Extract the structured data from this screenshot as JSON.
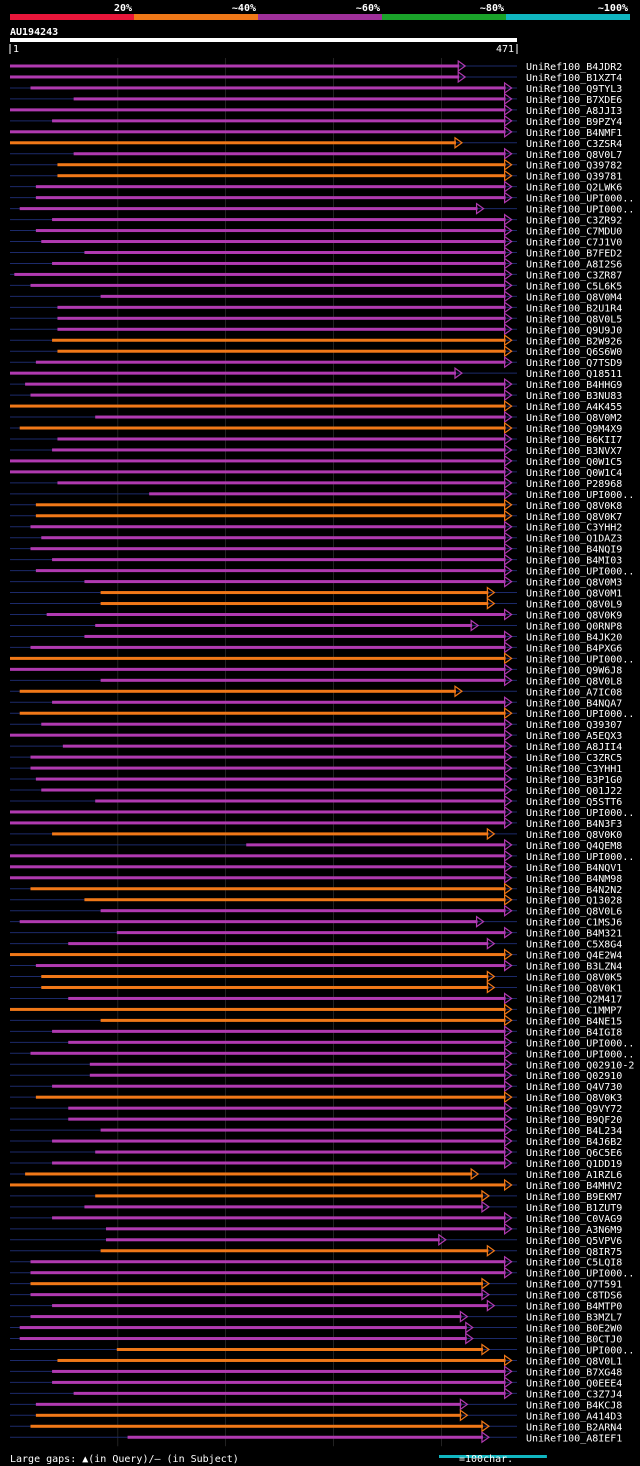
{
  "query": {
    "name": "AU194243",
    "start": "1",
    "end": "471",
    "length": 471
  },
  "legend_scale": [
    {
      "label": "20%",
      "color": "#e8163a"
    },
    {
      "label": "~40%",
      "color": "#f07818"
    },
    {
      "label": "~60%",
      "color": "#a0309a"
    },
    {
      "label": "~80%",
      "color": "#1aa32a"
    },
    {
      "label": "~100%",
      "color": "#10b6c0"
    }
  ],
  "footer": {
    "gap_text": "Large gaps: ▲(in Query)/– (in Subject)",
    "scale_text": "=100char.",
    "scale_color": "#10b6c0"
  },
  "colors": {
    "purple": "#b03ab0",
    "orange": "#f07818",
    "gap": "#ffd27a"
  },
  "chart_data": {
    "type": "alignment",
    "x_range": [
      1,
      471
    ],
    "hits": [
      {
        "name": "UniRef100_B4JDR2",
        "start": 1,
        "end": 423,
        "color": "purple",
        "end_arrow": true
      },
      {
        "name": "UniRef100_B1XZT4",
        "start": 1,
        "end": 423,
        "color": "purple"
      },
      {
        "name": "UniRef100_Q9TYL3",
        "start": 20,
        "end": 466,
        "color": "purple"
      },
      {
        "name": "UniRef100_B7XDE6",
        "start": 60,
        "end": 466,
        "color": "purple"
      },
      {
        "name": "UniRef100_A8JJI3",
        "start": 1,
        "end": 466,
        "color": "purple"
      },
      {
        "name": "UniRef100_B9PZY4",
        "start": 40,
        "end": 466,
        "color": "purple"
      },
      {
        "name": "UniRef100_B4NMF1",
        "start": 1,
        "end": 466,
        "color": "purple"
      },
      {
        "name": "UniRef100_C3ZSR4",
        "start": 1,
        "end": 420,
        "color": "orange"
      },
      {
        "name": "UniRef100_Q8V0L7",
        "start": 60,
        "end": 466,
        "color": "purple"
      },
      {
        "name": "UniRef100_Q39782",
        "start": 45,
        "end": 466,
        "color": "orange"
      },
      {
        "name": "UniRef100_Q39781",
        "start": 45,
        "end": 466,
        "color": "orange"
      },
      {
        "name": "UniRef100_Q2LWK6",
        "start": 25,
        "end": 466,
        "color": "purple"
      },
      {
        "name": "UniRef100_UPI000..",
        "start": 25,
        "end": 466,
        "color": "purple"
      },
      {
        "name": "UniRef100_UPI000..",
        "start": 10,
        "end": 440,
        "color": "purple"
      },
      {
        "name": "UniRef100_C3ZR92",
        "start": 40,
        "end": 466,
        "color": "purple"
      },
      {
        "name": "UniRef100_C7MDU0",
        "start": 25,
        "end": 466,
        "color": "purple"
      },
      {
        "name": "UniRef100_C7J1V0",
        "start": 30,
        "end": 466,
        "color": "purple"
      },
      {
        "name": "UniRef100_B7FED2",
        "start": 70,
        "end": 466,
        "color": "purple"
      },
      {
        "name": "UniRef100_A8I2S6",
        "start": 40,
        "end": 466,
        "color": "purple"
      },
      {
        "name": "UniRef100_C3ZR87",
        "start": 5,
        "end": 466,
        "color": "purple"
      },
      {
        "name": "UniRef100_C5L6K5",
        "start": 20,
        "end": 466,
        "color": "purple"
      },
      {
        "name": "UniRef100_Q8V0M4",
        "start": 85,
        "end": 466,
        "color": "purple"
      },
      {
        "name": "UniRef100_B2U1R4",
        "start": 45,
        "end": 466,
        "color": "purple"
      },
      {
        "name": "UniRef100_Q8V0L5",
        "start": 45,
        "end": 466,
        "color": "purple"
      },
      {
        "name": "UniRef100_Q9U9J0",
        "start": 45,
        "end": 466,
        "color": "purple"
      },
      {
        "name": "UniRef100_B2W926",
        "start": 40,
        "end": 466,
        "color": "orange"
      },
      {
        "name": "UniRef100_Q6S6W0",
        "start": 45,
        "end": 466,
        "color": "orange"
      },
      {
        "name": "UniRef100_Q7TSD9",
        "start": 25,
        "end": 466,
        "color": "purple"
      },
      {
        "name": "UniRef100_Q18511",
        "start": 1,
        "end": 420,
        "color": "purple"
      },
      {
        "name": "UniRef100_B4HHG9",
        "start": 15,
        "end": 466,
        "color": "purple"
      },
      {
        "name": "UniRef100_B3NU83",
        "start": 20,
        "end": 466,
        "color": "purple"
      },
      {
        "name": "UniRef100_A4K455",
        "start": 1,
        "end": 466,
        "color": "orange"
      },
      {
        "name": "UniRef100_Q8V0M2",
        "start": 80,
        "end": 466,
        "color": "purple"
      },
      {
        "name": "UniRef100_Q9M4X9",
        "start": 10,
        "end": 466,
        "color": "orange"
      },
      {
        "name": "UniRef100_B6KII7",
        "start": 45,
        "end": 466,
        "color": "purple"
      },
      {
        "name": "UniRef100_B3NVX7",
        "start": 40,
        "end": 466,
        "color": "purple"
      },
      {
        "name": "UniRef100_Q0W1C5",
        "start": 1,
        "end": 466,
        "color": "purple"
      },
      {
        "name": "UniRef100_Q0W1C4",
        "start": 1,
        "end": 466,
        "color": "purple"
      },
      {
        "name": "UniRef100_P28968",
        "start": 45,
        "end": 466,
        "color": "purple"
      },
      {
        "name": "UniRef100_UPI000..",
        "start": 130,
        "end": 466,
        "color": "purple"
      },
      {
        "name": "UniRef100_Q8V0K8",
        "start": 25,
        "end": 466,
        "color": "orange"
      },
      {
        "name": "UniRef100_Q8V0K7",
        "start": 25,
        "end": 466,
        "color": "orange"
      },
      {
        "name": "UniRef100_C3YHH2",
        "start": 20,
        "end": 466,
        "color": "purple"
      },
      {
        "name": "UniRef100_Q1DAZ3",
        "start": 30,
        "end": 466,
        "color": "purple"
      },
      {
        "name": "UniRef100_B4NQI9",
        "start": 20,
        "end": 466,
        "color": "purple"
      },
      {
        "name": "UniRef100_B4MI03",
        "start": 40,
        "end": 466,
        "color": "purple"
      },
      {
        "name": "UniRef100_UPI000..",
        "start": 25,
        "end": 466,
        "color": "purple"
      },
      {
        "name": "UniRef100_Q8V0M3",
        "start": 70,
        "end": 466,
        "color": "purple"
      },
      {
        "name": "UniRef100_Q8V0M1",
        "start": 85,
        "end": 450,
        "color": "orange"
      },
      {
        "name": "UniRef100_Q8V0L9",
        "start": 85,
        "end": 450,
        "color": "orange"
      },
      {
        "name": "UniRef100_Q8V0K9",
        "start": 35,
        "end": 466,
        "color": "purple"
      },
      {
        "name": "UniRef100_Q0RNP8",
        "start": 80,
        "end": 435,
        "color": "purple"
      },
      {
        "name": "UniRef100_B4JK20",
        "start": 70,
        "end": 466,
        "color": "purple"
      },
      {
        "name": "UniRef100_B4PXG6",
        "start": 20,
        "end": 466,
        "color": "purple"
      },
      {
        "name": "UniRef100_UPI000..",
        "start": 1,
        "end": 466,
        "color": "orange"
      },
      {
        "name": "UniRef100_Q9W6J8",
        "start": 1,
        "end": 466,
        "color": "purple"
      },
      {
        "name": "UniRef100_Q8V0L8",
        "start": 85,
        "end": 466,
        "color": "purple"
      },
      {
        "name": "UniRef100_A7IC08",
        "start": 10,
        "end": 420,
        "color": "orange"
      },
      {
        "name": "UniRef100_B4NQA7",
        "start": 40,
        "end": 466,
        "color": "purple"
      },
      {
        "name": "UniRef100_UPI000..",
        "start": 10,
        "end": 466,
        "color": "orange"
      },
      {
        "name": "UniRef100_Q39307",
        "start": 30,
        "end": 466,
        "color": "purple"
      },
      {
        "name": "UniRef100_A5EQX3",
        "start": 1,
        "end": 466,
        "color": "purple"
      },
      {
        "name": "UniRef100_A8JII4",
        "start": 50,
        "end": 466,
        "color": "purple"
      },
      {
        "name": "UniRef100_C3ZRC5",
        "start": 20,
        "end": 466,
        "color": "purple"
      },
      {
        "name": "UniRef100_C3YHH1",
        "start": 20,
        "end": 466,
        "color": "purple"
      },
      {
        "name": "UniRef100_B3P1G0",
        "start": 25,
        "end": 466,
        "color": "purple"
      },
      {
        "name": "UniRef100_Q01J22",
        "start": 30,
        "end": 466,
        "color": "purple"
      },
      {
        "name": "UniRef100_Q5STT6",
        "start": 80,
        "end": 466,
        "color": "purple"
      },
      {
        "name": "UniRef100_UPI000..",
        "start": 1,
        "end": 466,
        "color": "purple"
      },
      {
        "name": "UniRef100_B4N3F3",
        "start": 1,
        "end": 466,
        "color": "purple"
      },
      {
        "name": "UniRef100_Q8V0K0",
        "start": 40,
        "end": 450,
        "color": "orange"
      },
      {
        "name": "UniRef100_Q4QEM8",
        "start": 220,
        "end": 466,
        "color": "purple"
      },
      {
        "name": "UniRef100_UPI000..",
        "start": 1,
        "end": 466,
        "color": "purple"
      },
      {
        "name": "UniRef100_B4NQV1",
        "start": 1,
        "end": 466,
        "color": "purple"
      },
      {
        "name": "UniRef100_B4NM98",
        "start": 1,
        "end": 466,
        "color": "purple"
      },
      {
        "name": "UniRef100_B4N2N2",
        "start": 20,
        "end": 466,
        "color": "orange"
      },
      {
        "name": "UniRef100_Q13028",
        "start": 70,
        "end": 466,
        "color": "orange"
      },
      {
        "name": "UniRef100_Q8V0L6",
        "start": 85,
        "end": 466,
        "color": "purple"
      },
      {
        "name": "UniRef100_C1MSJ6",
        "start": 10,
        "end": 440,
        "color": "purple"
      },
      {
        "name": "UniRef100_B4M321",
        "start": 100,
        "end": 466,
        "color": "purple"
      },
      {
        "name": "UniRef100_C5X8G4",
        "start": 55,
        "end": 450,
        "color": "purple"
      },
      {
        "name": "UniRef100_Q4E2W4",
        "start": 1,
        "end": 466,
        "color": "orange"
      },
      {
        "name": "UniRef100_B3LZN4",
        "start": 25,
        "end": 466,
        "color": "purple"
      },
      {
        "name": "UniRef100_Q8V0K5",
        "start": 30,
        "end": 450,
        "color": "orange"
      },
      {
        "name": "UniRef100_Q8V0K1",
        "start": 30,
        "end": 450,
        "color": "orange"
      },
      {
        "name": "UniRef100_Q2M417",
        "start": 55,
        "end": 466,
        "color": "purple"
      },
      {
        "name": "UniRef100_C1MMP7",
        "start": 1,
        "end": 466,
        "color": "orange"
      },
      {
        "name": "UniRef100_B4NE15",
        "start": 85,
        "end": 466,
        "color": "orange"
      },
      {
        "name": "UniRef100_B4IGI8",
        "start": 40,
        "end": 466,
        "color": "purple"
      },
      {
        "name": "UniRef100_UPI000..",
        "start": 55,
        "end": 466,
        "color": "purple"
      },
      {
        "name": "UniRef100_UPI000..",
        "start": 20,
        "end": 466,
        "color": "purple"
      },
      {
        "name": "UniRef100_Q02910-2",
        "start": 75,
        "end": 466,
        "color": "purple"
      },
      {
        "name": "UniRef100_Q02910",
        "start": 75,
        "end": 466,
        "color": "purple"
      },
      {
        "name": "UniRef100_Q4V730",
        "start": 40,
        "end": 466,
        "color": "purple"
      },
      {
        "name": "UniRef100_Q8V0K3",
        "start": 25,
        "end": 466,
        "color": "orange"
      },
      {
        "name": "UniRef100_Q9VY72",
        "start": 55,
        "end": 466,
        "color": "purple"
      },
      {
        "name": "UniRef100_B9QF20",
        "start": 55,
        "end": 466,
        "color": "purple"
      },
      {
        "name": "UniRef100_B4L234",
        "start": 85,
        "end": 466,
        "color": "purple"
      },
      {
        "name": "UniRef100_B4J6B2",
        "start": 40,
        "end": 466,
        "color": "purple"
      },
      {
        "name": "UniRef100_Q6C5E6",
        "start": 80,
        "end": 466,
        "color": "purple"
      },
      {
        "name": "UniRef100_Q1DD19",
        "start": 40,
        "end": 466,
        "color": "purple"
      },
      {
        "name": "UniRef100_A1RZL6",
        "start": 15,
        "end": 435,
        "color": "orange"
      },
      {
        "name": "UniRef100_B4MHV2",
        "start": 1,
        "end": 466,
        "color": "orange"
      },
      {
        "name": "UniRef100_B9EKM7",
        "start": 80,
        "end": 445,
        "color": "orange"
      },
      {
        "name": "UniRef100_B1ZUT9",
        "start": 70,
        "end": 445,
        "color": "purple"
      },
      {
        "name": "UniRef100_C0VAG9",
        "start": 40,
        "end": 466,
        "color": "purple"
      },
      {
        "name": "UniRef100_A3N6M9",
        "start": 90,
        "end": 466,
        "color": "purple"
      },
      {
        "name": "UniRef100_Q5VPV6",
        "start": 90,
        "end": 405,
        "color": "purple"
      },
      {
        "name": "UniRef100_Q8IR75",
        "start": 85,
        "end": 450,
        "color": "orange"
      },
      {
        "name": "UniRef100_C5LQI8",
        "start": 20,
        "end": 466,
        "color": "purple"
      },
      {
        "name": "UniRef100_UPI000..",
        "start": 20,
        "end": 466,
        "color": "purple"
      },
      {
        "name": "UniRef100_Q7T591",
        "start": 20,
        "end": 445,
        "color": "orange"
      },
      {
        "name": "UniRef100_C8TDS6",
        "start": 20,
        "end": 445,
        "color": "purple"
      },
      {
        "name": "UniRef100_B4MTP0",
        "start": 40,
        "end": 450,
        "color": "purple"
      },
      {
        "name": "UniRef100_B3MZL7",
        "start": 20,
        "end": 425,
        "color": "purple"
      },
      {
        "name": "UniRef100_B0E2W0",
        "start": 10,
        "end": 430,
        "color": "purple"
      },
      {
        "name": "UniRef100_B0CTJ0",
        "start": 10,
        "end": 430,
        "color": "purple"
      },
      {
        "name": "UniRef100_UPI000..",
        "start": 100,
        "end": 445,
        "color": "orange"
      },
      {
        "name": "UniRef100_Q8V0L1",
        "start": 45,
        "end": 466,
        "color": "orange"
      },
      {
        "name": "UniRef100_B7XG48",
        "start": 40,
        "end": 466,
        "color": "purple"
      },
      {
        "name": "UniRef100_Q0EEE4",
        "start": 40,
        "end": 466,
        "color": "purple"
      },
      {
        "name": "UniRef100_C3Z7J4",
        "start": 60,
        "end": 466,
        "color": "purple"
      },
      {
        "name": "UniRef100_B4KCJ8",
        "start": 25,
        "end": 425,
        "color": "purple"
      },
      {
        "name": "UniRef100_A414D3",
        "start": 25,
        "end": 425,
        "color": "orange"
      },
      {
        "name": "UniRef100_B2ARN4",
        "start": 20,
        "end": 445,
        "color": "orange"
      },
      {
        "name": "UniRef100_A8IEF1",
        "start": 110,
        "end": 445,
        "color": "purple"
      }
    ]
  }
}
